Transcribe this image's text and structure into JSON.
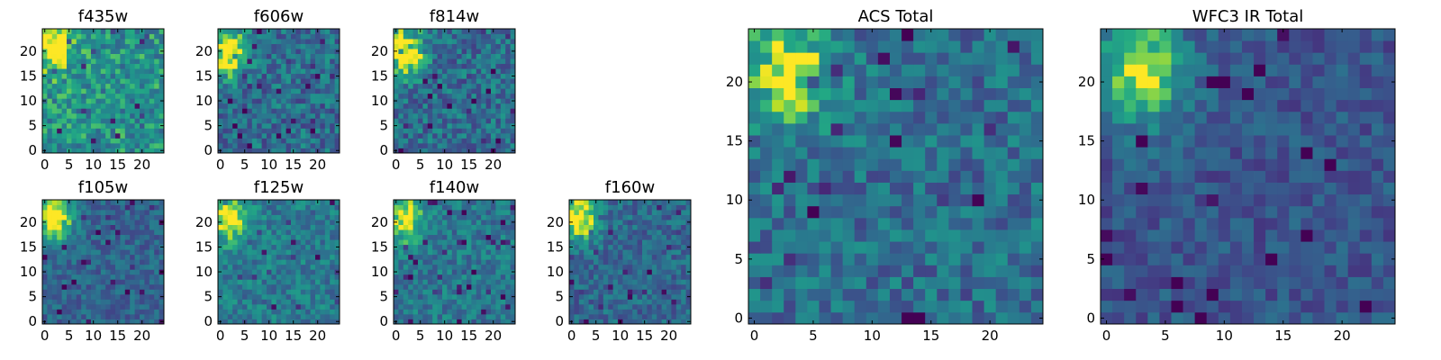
{
  "chart_data": [
    {
      "type": "heatmap",
      "title": "f435w",
      "xlim": [
        0,
        24
      ],
      "ylim": [
        0,
        24
      ],
      "xticks": [
        0,
        5,
        10,
        15,
        20
      ],
      "yticks": [
        0,
        5,
        10,
        15,
        20
      ],
      "grid_size": 25,
      "values": null,
      "hotspot": {
        "x": 2,
        "y": 21,
        "strength": 0.55
      },
      "noise": 0.45,
      "base": 0.62,
      "seed": 11
    },
    {
      "type": "heatmap",
      "title": "f606w",
      "xlim": [
        0,
        24
      ],
      "ylim": [
        0,
        24
      ],
      "xticks": [
        0,
        5,
        10,
        15,
        20
      ],
      "yticks": [
        0,
        5,
        10,
        15,
        20
      ],
      "grid_size": 25,
      "values": null,
      "hotspot": {
        "x": 2,
        "y": 20,
        "strength": 0.7
      },
      "noise": 0.45,
      "base": 0.45,
      "seed": 23
    },
    {
      "type": "heatmap",
      "title": "f814w",
      "xlim": [
        0,
        24
      ],
      "ylim": [
        0,
        24
      ],
      "xticks": [
        0,
        5,
        10,
        15,
        20
      ],
      "yticks": [
        0,
        5,
        10,
        15,
        20
      ],
      "grid_size": 25,
      "values": null,
      "hotspot": {
        "x": 2,
        "y": 20,
        "strength": 0.7
      },
      "noise": 0.45,
      "base": 0.45,
      "seed": 37
    },
    {
      "type": "heatmap",
      "title": "f105w",
      "xlim": [
        0,
        24
      ],
      "ylim": [
        0,
        24
      ],
      "xticks": [
        0,
        5,
        10,
        15,
        20
      ],
      "yticks": [
        0,
        5,
        10,
        15,
        20
      ],
      "grid_size": 25,
      "values": null,
      "hotspot": {
        "x": 2,
        "y": 21,
        "strength": 0.75
      },
      "noise": 0.3,
      "base": 0.4,
      "seed": 41
    },
    {
      "type": "heatmap",
      "title": "f125w",
      "xlim": [
        0,
        24
      ],
      "ylim": [
        0,
        24
      ],
      "xticks": [
        0,
        5,
        10,
        15,
        20
      ],
      "yticks": [
        0,
        5,
        10,
        15,
        20
      ],
      "grid_size": 25,
      "values": null,
      "hotspot": {
        "x": 2,
        "y": 21,
        "strength": 0.55
      },
      "noise": 0.35,
      "base": 0.52,
      "seed": 53
    },
    {
      "type": "heatmap",
      "title": "f140w",
      "xlim": [
        0,
        24
      ],
      "ylim": [
        0,
        24
      ],
      "xticks": [
        0,
        5,
        10,
        15,
        20
      ],
      "yticks": [
        0,
        5,
        10,
        15,
        20
      ],
      "grid_size": 25,
      "values": null,
      "hotspot": {
        "x": 2,
        "y": 21,
        "strength": 0.55
      },
      "noise": 0.35,
      "base": 0.5,
      "seed": 67
    },
    {
      "type": "heatmap",
      "title": "f160w",
      "xlim": [
        0,
        24
      ],
      "ylim": [
        0,
        24
      ],
      "xticks": [
        0,
        5,
        10,
        15,
        20
      ],
      "yticks": [
        0,
        5,
        10,
        15,
        20
      ],
      "grid_size": 25,
      "values": null,
      "hotspot": {
        "x": 2,
        "y": 21,
        "strength": 0.65
      },
      "noise": 0.35,
      "base": 0.42,
      "seed": 79
    },
    {
      "type": "heatmap",
      "title": "ACS Total",
      "xlim": [
        0,
        24
      ],
      "ylim": [
        0,
        24
      ],
      "xticks": [
        0,
        5,
        10,
        15,
        20
      ],
      "yticks": [
        0,
        5,
        10,
        15,
        20
      ],
      "grid_size": 25,
      "values": null,
      "hotspot": {
        "x": 3,
        "y": 21,
        "strength": 0.55
      },
      "noise": 0.4,
      "base": 0.45,
      "seed": 97
    },
    {
      "type": "heatmap",
      "title": "WFC3 IR Total",
      "xlim": [
        0,
        24
      ],
      "ylim": [
        0,
        24
      ],
      "xticks": [
        0,
        5,
        10,
        15,
        20
      ],
      "yticks": [
        0,
        5,
        10,
        15,
        20
      ],
      "grid_size": 25,
      "values": null,
      "hotspot": {
        "x": 3,
        "y": 21,
        "strength": 0.65
      },
      "noise": 0.28,
      "base": 0.33,
      "seed": 113
    }
  ],
  "colormap": "viridis",
  "colors": {
    "low": "#440154",
    "mid": "#21918c",
    "high": "#fde725"
  }
}
